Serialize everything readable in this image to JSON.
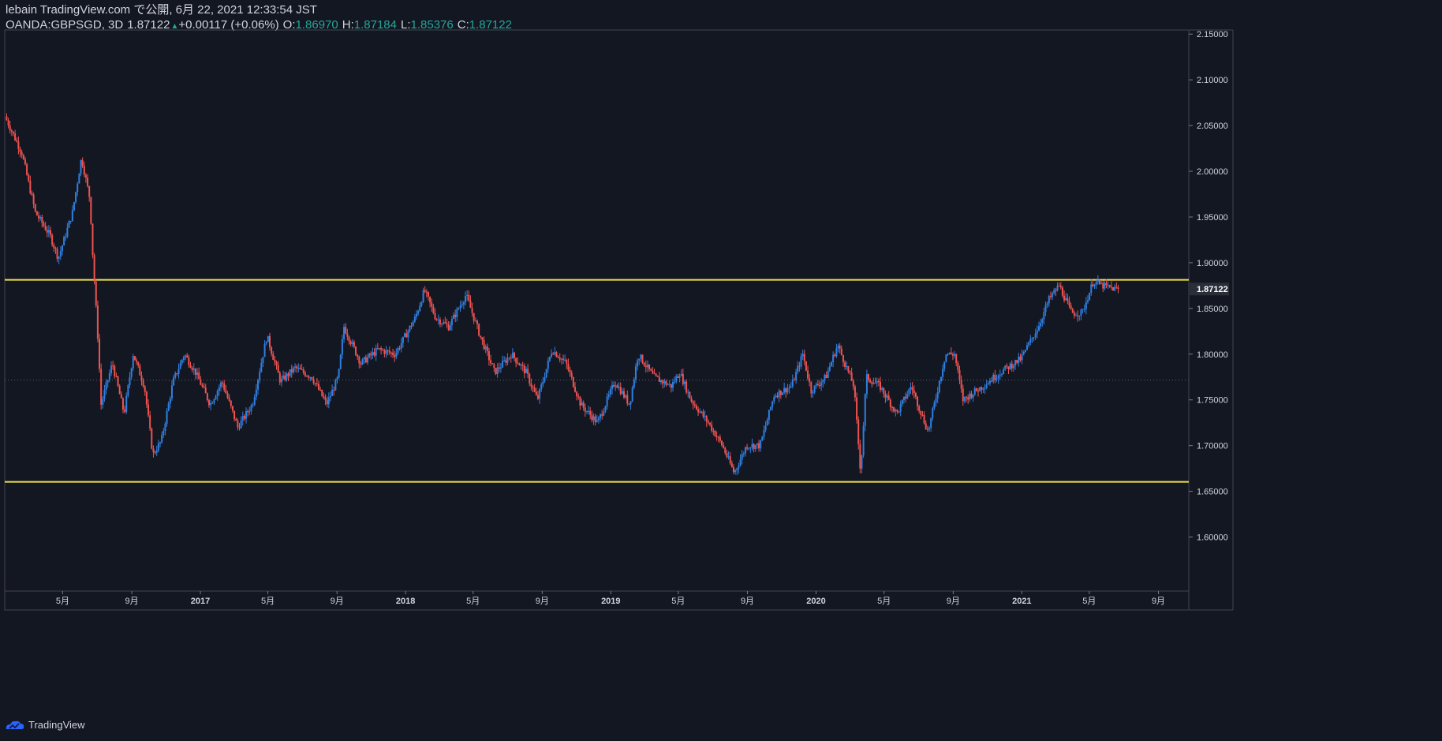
{
  "header": {
    "publish_line": "lebain TradingView.com で公開, 6月 22, 2021 12:33:54 JST",
    "symbol": "OANDA:GBPSGD, 3D",
    "last": "1.87122",
    "change": "+0.00117 (+0.06%)",
    "o_label": "O:",
    "o_value": "1.86970",
    "h_label": "H:",
    "h_value": "1.87184",
    "l_label": "L:",
    "l_value": "1.85376",
    "c_label": "C:",
    "c_value": "1.87122"
  },
  "footer": {
    "brand": "TradingView",
    "logo_icon": "tradingview-logo-icon"
  },
  "colors": {
    "background": "#131722",
    "up": "#2f7fe0",
    "down": "#ef5350",
    "level_line": "#f0e04a",
    "axis_text": "#d1d4dc"
  },
  "chart_data": {
    "type": "candlestick",
    "symbol": "OANDA:GBPSGD",
    "interval": "3D",
    "ylim": [
      1.5409,
      2.1545
    ],
    "y_ticks": [
      "2.15000",
      "2.10000",
      "2.05000",
      "2.00000",
      "1.95000",
      "1.90000",
      "1.85000",
      "1.80000",
      "1.75000",
      "1.70000",
      "1.65000",
      "1.60000"
    ],
    "x_ticks": [
      {
        "label": "5月",
        "date": "2016-05-01"
      },
      {
        "label": "9月",
        "date": "2016-09-01"
      },
      {
        "label": "2017",
        "date": "2017-01-01"
      },
      {
        "label": "5月",
        "date": "2017-05-01"
      },
      {
        "label": "9月",
        "date": "2017-09-01"
      },
      {
        "label": "2018",
        "date": "2018-01-01"
      },
      {
        "label": "5月",
        "date": "2018-05-01"
      },
      {
        "label": "9月",
        "date": "2018-09-01"
      },
      {
        "label": "2019",
        "date": "2019-01-01"
      },
      {
        "label": "5月",
        "date": "2019-05-01"
      },
      {
        "label": "9月",
        "date": "2019-09-01"
      },
      {
        "label": "2020",
        "date": "2020-01-01"
      },
      {
        "label": "5月",
        "date": "2020-05-01"
      },
      {
        "label": "9月",
        "date": "2020-09-01"
      },
      {
        "label": "2021",
        "date": "2021-01-01"
      },
      {
        "label": "5月",
        "date": "2021-05-01"
      },
      {
        "label": "9月",
        "date": "2021-09-01"
      }
    ],
    "x_range": [
      "2016-01-19",
      "2021-10-25"
    ],
    "last_price": 1.87122,
    "last_price_label": "1.87122",
    "last_price_dotted_line": 1.7715,
    "horizontal_levels": [
      1.8812,
      1.6603
    ],
    "close_path": [
      {
        "date": "2016-01-21",
        "value": 2.06
      },
      {
        "date": "2016-02-20",
        "value": 2.02
      },
      {
        "date": "2016-03-15",
        "value": 1.955
      },
      {
        "date": "2016-04-10",
        "value": 1.93
      },
      {
        "date": "2016-04-25",
        "value": 1.905
      },
      {
        "date": "2016-05-20",
        "value": 1.955
      },
      {
        "date": "2016-06-05",
        "value": 2.015
      },
      {
        "date": "2016-06-20",
        "value": 1.97
      },
      {
        "date": "2016-06-25",
        "value": 1.91
      },
      {
        "date": "2016-07-05",
        "value": 1.81
      },
      {
        "date": "2016-07-10",
        "value": 1.745
      },
      {
        "date": "2016-07-30",
        "value": 1.79
      },
      {
        "date": "2016-08-20",
        "value": 1.735
      },
      {
        "date": "2016-09-05",
        "value": 1.8
      },
      {
        "date": "2016-09-25",
        "value": 1.765
      },
      {
        "date": "2016-10-10",
        "value": 1.69
      },
      {
        "date": "2016-10-25",
        "value": 1.705
      },
      {
        "date": "2016-11-15",
        "value": 1.77
      },
      {
        "date": "2016-12-05",
        "value": 1.8
      },
      {
        "date": "2016-12-25",
        "value": 1.78
      },
      {
        "date": "2017-01-20",
        "value": 1.745
      },
      {
        "date": "2017-02-10",
        "value": 1.77
      },
      {
        "date": "2017-03-10",
        "value": 1.72
      },
      {
        "date": "2017-04-05",
        "value": 1.745
      },
      {
        "date": "2017-05-01",
        "value": 1.82
      },
      {
        "date": "2017-05-25",
        "value": 1.77
      },
      {
        "date": "2017-06-20",
        "value": 1.785
      },
      {
        "date": "2017-07-20",
        "value": 1.775
      },
      {
        "date": "2017-08-15",
        "value": 1.745
      },
      {
        "date": "2017-09-05",
        "value": 1.775
      },
      {
        "date": "2017-09-15",
        "value": 1.83
      },
      {
        "date": "2017-10-15",
        "value": 1.79
      },
      {
        "date": "2017-11-15",
        "value": 1.805
      },
      {
        "date": "2017-12-15",
        "value": 1.8
      },
      {
        "date": "2018-01-20",
        "value": 1.84
      },
      {
        "date": "2018-02-05",
        "value": 1.87
      },
      {
        "date": "2018-02-25",
        "value": 1.84
      },
      {
        "date": "2018-03-20",
        "value": 1.83
      },
      {
        "date": "2018-04-20",
        "value": 1.865
      },
      {
        "date": "2018-05-15",
        "value": 1.82
      },
      {
        "date": "2018-06-10",
        "value": 1.78
      },
      {
        "date": "2018-07-10",
        "value": 1.8
      },
      {
        "date": "2018-08-05",
        "value": 1.78
      },
      {
        "date": "2018-08-25",
        "value": 1.75
      },
      {
        "date": "2018-09-20",
        "value": 1.805
      },
      {
        "date": "2018-10-15",
        "value": 1.79
      },
      {
        "date": "2018-11-10",
        "value": 1.745
      },
      {
        "date": "2018-12-10",
        "value": 1.725
      },
      {
        "date": "2019-01-10",
        "value": 1.77
      },
      {
        "date": "2019-02-05",
        "value": 1.745
      },
      {
        "date": "2019-02-20",
        "value": 1.8
      },
      {
        "date": "2019-03-20",
        "value": 1.775
      },
      {
        "date": "2019-04-20",
        "value": 1.765
      },
      {
        "date": "2019-05-05",
        "value": 1.78
      },
      {
        "date": "2019-05-25",
        "value": 1.75
      },
      {
        "date": "2019-06-25",
        "value": 1.725
      },
      {
        "date": "2019-07-20",
        "value": 1.7
      },
      {
        "date": "2019-08-10",
        "value": 1.67
      },
      {
        "date": "2019-09-01",
        "value": 1.7
      },
      {
        "date": "2019-09-25",
        "value": 1.7
      },
      {
        "date": "2019-10-20",
        "value": 1.755
      },
      {
        "date": "2019-11-20",
        "value": 1.765
      },
      {
        "date": "2019-12-10",
        "value": 1.8
      },
      {
        "date": "2019-12-25",
        "value": 1.76
      },
      {
        "date": "2020-01-20",
        "value": 1.775
      },
      {
        "date": "2020-02-10",
        "value": 1.81
      },
      {
        "date": "2020-03-10",
        "value": 1.765
      },
      {
        "date": "2020-03-22",
        "value": 1.67
      },
      {
        "date": "2020-04-01",
        "value": 1.775
      },
      {
        "date": "2020-04-25",
        "value": 1.765
      },
      {
        "date": "2020-05-25",
        "value": 1.735
      },
      {
        "date": "2020-06-20",
        "value": 1.765
      },
      {
        "date": "2020-07-20",
        "value": 1.715
      },
      {
        "date": "2020-08-20",
        "value": 1.8
      },
      {
        "date": "2020-09-05",
        "value": 1.8
      },
      {
        "date": "2020-09-20",
        "value": 1.75
      },
      {
        "date": "2020-10-25",
        "value": 1.765
      },
      {
        "date": "2020-11-25",
        "value": 1.78
      },
      {
        "date": "2021-01-01",
        "value": 1.795
      },
      {
        "date": "2021-02-01",
        "value": 1.83
      },
      {
        "date": "2021-02-20",
        "value": 1.86
      },
      {
        "date": "2021-03-10",
        "value": 1.875
      },
      {
        "date": "2021-04-01",
        "value": 1.845
      },
      {
        "date": "2021-04-20",
        "value": 1.845
      },
      {
        "date": "2021-05-10",
        "value": 1.88
      },
      {
        "date": "2021-05-25",
        "value": 1.875
      },
      {
        "date": "2021-06-20",
        "value": 1.871
      }
    ]
  }
}
